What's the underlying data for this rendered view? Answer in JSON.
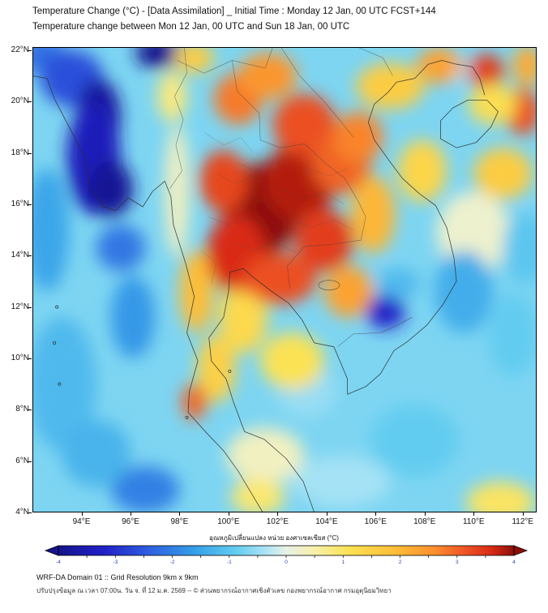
{
  "header": {
    "title_line1": "Temperature Change (°C) - [Data Assimilation] _ Initial Time : Monday 12 Jan, 00 UTC FCST+144",
    "title_line2": "Temperature change between Mon 12 Jan, 00 UTC and Sun 18 Jan, 00 UTC"
  },
  "colorbar": {
    "label": "อุณหภูมิเปลี่ยนแปลง หน่วย องศาเซลเซียส (°C)",
    "min": -4,
    "max": 4,
    "tick_values": [
      -4,
      -3,
      -2,
      -1,
      0,
      1,
      2,
      3,
      4
    ],
    "stops": [
      {
        "value": -4.0,
        "color": "#14148c"
      },
      {
        "value": -3.2,
        "color": "#2121c8"
      },
      {
        "value": -2.4,
        "color": "#2e5fe0"
      },
      {
        "value": -1.6,
        "color": "#35a0e8"
      },
      {
        "value": -0.9,
        "color": "#62ccf0"
      },
      {
        "value": -0.35,
        "color": "#ace4f5"
      },
      {
        "value": 0.0,
        "color": "#e8f1e6"
      },
      {
        "value": 0.5,
        "color": "#f7f0a8"
      },
      {
        "value": 1.1,
        "color": "#fbe254"
      },
      {
        "value": 1.9,
        "color": "#fdbe38"
      },
      {
        "value": 2.6,
        "color": "#fb8f2e"
      },
      {
        "value": 3.1,
        "color": "#ef5826"
      },
      {
        "value": 3.6,
        "color": "#d92c15"
      },
      {
        "value": 4.0,
        "color": "#8d0f0a"
      }
    ]
  },
  "footer": {
    "line1": "WRF-DA Domain 01 :: Grid Resolution 9km x 9km",
    "line2": "ปรับปรุงข้อมูล ณ เวลา 07:00น. วัน จ. ที่ 12 ม.ค. 2569 -- © ส่วนพยากรณ์อากาศเชิงตัวเลข กองพยากรณ์อากาศ กรมอุตุนิยมวิทยา"
  },
  "chart_data": {
    "type": "heatmap",
    "title": "Temperature change (°C) between Mon 12 Jan 00 UTC and Sun 18 Jan 00 UTC",
    "units": "°C",
    "lon_range": [
      92.0,
      112.57
    ],
    "lat_range": [
      4.0,
      22.12
    ],
    "x_ticks": [
      {
        "value": 94,
        "label": "94°E"
      },
      {
        "value": 96,
        "label": "96°E"
      },
      {
        "value": 98,
        "label": "98°E"
      },
      {
        "value": 100,
        "label": "100°E"
      },
      {
        "value": 102,
        "label": "102°E"
      },
      {
        "value": 104,
        "label": "104°E"
      },
      {
        "value": 106,
        "label": "106°E"
      },
      {
        "value": 108,
        "label": "108°E"
      },
      {
        "value": 110,
        "label": "110°E"
      },
      {
        "value": 112,
        "label": "112°E"
      }
    ],
    "y_ticks": [
      {
        "value": 22,
        "label": "22°N"
      },
      {
        "value": 20,
        "label": "20°N"
      },
      {
        "value": 18,
        "label": "18°N"
      },
      {
        "value": 16,
        "label": "16°N"
      },
      {
        "value": 14,
        "label": "14°N"
      },
      {
        "value": 12,
        "label": "12°N"
      },
      {
        "value": 10,
        "label": "10°N"
      },
      {
        "value": 8,
        "label": "8°N"
      },
      {
        "value": 6,
        "label": "6°N"
      },
      {
        "value": 4,
        "label": "4°N"
      }
    ],
    "anomaly_centers": [
      {
        "lon": 92.4,
        "lat": 21.8,
        "v": -2.2,
        "rx": 1.0,
        "ry": 0.7
      },
      {
        "lon": 93.6,
        "lat": 20.9,
        "v": -2.6,
        "rx": 1.3,
        "ry": 1.1
      },
      {
        "lon": 94.7,
        "lat": 19.4,
        "v": -3.8,
        "rx": 0.9,
        "ry": 1.5
      },
      {
        "lon": 94.5,
        "lat": 17.8,
        "v": -3.4,
        "rx": 1.1,
        "ry": 2.2
      },
      {
        "lon": 95.2,
        "lat": 16.6,
        "v": -3.9,
        "rx": 0.9,
        "ry": 1.1
      },
      {
        "lon": 97.1,
        "lat": 21.9,
        "v": -4.0,
        "rx": 0.9,
        "ry": 0.6
      },
      {
        "lon": 95.6,
        "lat": 14.3,
        "v": -2.1,
        "rx": 1.0,
        "ry": 0.9
      },
      {
        "lon": 92.6,
        "lat": 15.0,
        "v": -1.5,
        "rx": 0.9,
        "ry": 2.4
      },
      {
        "lon": 96.1,
        "lat": 11.6,
        "v": -1.7,
        "rx": 0.9,
        "ry": 1.6
      },
      {
        "lon": 93.2,
        "lat": 9.0,
        "v": -1.2,
        "rx": 1.4,
        "ry": 2.6
      },
      {
        "lon": 96.6,
        "lat": 4.9,
        "v": -2.0,
        "rx": 1.4,
        "ry": 0.9
      },
      {
        "lon": 94.6,
        "lat": 6.3,
        "v": -1.3,
        "rx": 1.4,
        "ry": 1.3
      },
      {
        "lon": 97.9,
        "lat": 16.5,
        "v": 0.3,
        "rx": 0.5,
        "ry": 2.6
      },
      {
        "lon": 97.7,
        "lat": 20.2,
        "v": 0.8,
        "rx": 0.6,
        "ry": 1.0
      },
      {
        "lon": 98.6,
        "lat": 21.7,
        "v": 1.6,
        "rx": 0.8,
        "ry": 0.6
      },
      {
        "lon": 101.5,
        "lat": 6.2,
        "v": 0.3,
        "rx": 1.6,
        "ry": 1.1
      },
      {
        "lon": 104.6,
        "lat": 5.2,
        "v": -0.4,
        "rx": 2.0,
        "ry": 1.0
      },
      {
        "lon": 107.6,
        "lat": 6.8,
        "v": -0.9,
        "rx": 1.8,
        "ry": 1.4
      },
      {
        "lon": 103.2,
        "lat": 8.7,
        "v": -0.5,
        "rx": 1.2,
        "ry": 1.0
      },
      {
        "lon": 110.0,
        "lat": 14.9,
        "v": 0.2,
        "rx": 1.5,
        "ry": 1.6
      },
      {
        "lon": 112.1,
        "lat": 14.3,
        "v": -1.0,
        "rx": 0.9,
        "ry": 1.4
      },
      {
        "lon": 109.6,
        "lat": 12.6,
        "v": -1.4,
        "rx": 1.2,
        "ry": 1.6
      },
      {
        "lon": 111.6,
        "lat": 10.9,
        "v": -0.9,
        "rx": 1.0,
        "ry": 1.6
      },
      {
        "lon": 109.4,
        "lat": 21.2,
        "v": -0.4,
        "rx": 0.6,
        "ry": 0.5
      },
      {
        "lon": 111.1,
        "lat": 4.4,
        "v": 1.0,
        "rx": 1.4,
        "ry": 0.8
      },
      {
        "lon": 101.2,
        "lat": 4.6,
        "v": 0.9,
        "rx": 1.1,
        "ry": 0.7
      },
      {
        "lon": 99.5,
        "lat": 9.6,
        "v": 1.5,
        "rx": 0.8,
        "ry": 1.3
      },
      {
        "lon": 98.7,
        "lat": 12.6,
        "v": 1.9,
        "rx": 0.7,
        "ry": 1.6
      },
      {
        "lon": 98.6,
        "lat": 8.3,
        "v": 3.0,
        "rx": 0.5,
        "ry": 0.7
      },
      {
        "lon": 100.6,
        "lat": 11.6,
        "v": 1.3,
        "rx": 1.0,
        "ry": 1.4
      },
      {
        "lon": 102.6,
        "lat": 9.9,
        "v": 1.1,
        "rx": 1.3,
        "ry": 1.1
      },
      {
        "lon": 101.3,
        "lat": 15.8,
        "v": 4.0,
        "rx": 1.6,
        "ry": 1.8
      },
      {
        "lon": 102.9,
        "lat": 16.9,
        "v": 3.8,
        "rx": 1.5,
        "ry": 1.5
      },
      {
        "lon": 100.3,
        "lat": 14.1,
        "v": 3.6,
        "rx": 1.2,
        "ry": 1.5
      },
      {
        "lon": 103.9,
        "lat": 14.6,
        "v": 3.4,
        "rx": 1.2,
        "ry": 1.2
      },
      {
        "lon": 102.1,
        "lat": 13.1,
        "v": 3.2,
        "rx": 1.5,
        "ry": 1.0
      },
      {
        "lon": 99.8,
        "lat": 16.9,
        "v": 3.3,
        "rx": 1.0,
        "ry": 1.2
      },
      {
        "lon": 103.1,
        "lat": 19.1,
        "v": 3.2,
        "rx": 1.3,
        "ry": 1.2
      },
      {
        "lon": 104.6,
        "lat": 17.6,
        "v": 3.0,
        "rx": 1.2,
        "ry": 1.2
      },
      {
        "lon": 100.4,
        "lat": 20.1,
        "v": 2.8,
        "rx": 1.0,
        "ry": 1.0
      },
      {
        "lon": 101.6,
        "lat": 21.0,
        "v": 2.5,
        "rx": 1.2,
        "ry": 0.9
      },
      {
        "lon": 105.3,
        "lat": 18.6,
        "v": 2.7,
        "rx": 1.0,
        "ry": 1.0
      },
      {
        "lon": 104.9,
        "lat": 12.6,
        "v": 2.3,
        "rx": 1.0,
        "ry": 1.0
      },
      {
        "lon": 105.9,
        "lat": 15.6,
        "v": 2.0,
        "rx": 0.9,
        "ry": 1.5
      },
      {
        "lon": 106.6,
        "lat": 20.6,
        "v": 1.6,
        "rx": 1.4,
        "ry": 0.9
      },
      {
        "lon": 108.6,
        "lat": 21.4,
        "v": 2.3,
        "rx": 0.9,
        "ry": 0.7
      },
      {
        "lon": 110.5,
        "lat": 21.2,
        "v": 3.4,
        "rx": 0.75,
        "ry": 0.65
      },
      {
        "lon": 112.0,
        "lat": 19.6,
        "v": 3.2,
        "rx": 0.7,
        "ry": 0.9
      },
      {
        "lon": 112.2,
        "lat": 21.4,
        "v": 2.2,
        "rx": 0.6,
        "ry": 0.8
      },
      {
        "lon": 111.2,
        "lat": 17.2,
        "v": 1.6,
        "rx": 1.2,
        "ry": 1.0
      },
      {
        "lon": 110.8,
        "lat": 19.9,
        "v": 1.2,
        "rx": 1.0,
        "ry": 0.8
      },
      {
        "lon": 107.9,
        "lat": 17.3,
        "v": 1.4,
        "rx": 1.0,
        "ry": 1.2
      },
      {
        "lon": 106.9,
        "lat": 12.9,
        "v": -1.2,
        "rx": 0.9,
        "ry": 0.6
      },
      {
        "lon": 106.4,
        "lat": 11.8,
        "v": -3.2,
        "rx": 0.8,
        "ry": 0.65
      }
    ]
  }
}
